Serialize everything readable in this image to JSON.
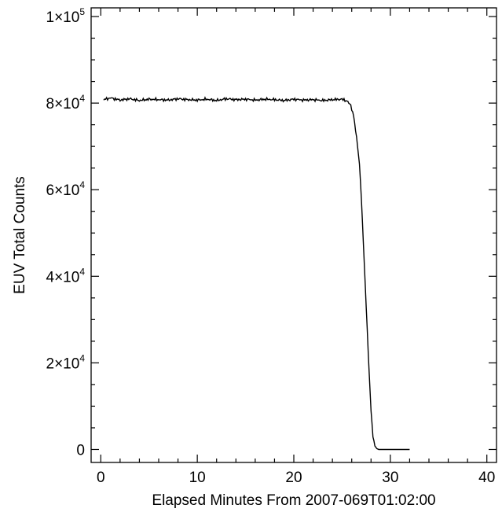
{
  "chart_data": {
    "type": "line",
    "title": "",
    "xlabel": "Elapsed Minutes From 2007-069T01:02:00",
    "ylabel": "EUV Total Counts",
    "xlim": [
      -1,
      41
    ],
    "ylim": [
      -3000,
      102000
    ],
    "grid": false,
    "x_ticks": [
      {
        "value": 0,
        "label": "0"
      },
      {
        "value": 10,
        "label": "10"
      },
      {
        "value": 20,
        "label": "20"
      },
      {
        "value": 30,
        "label": "30"
      },
      {
        "value": 40,
        "label": "40"
      }
    ],
    "y_ticks": [
      {
        "value": 0,
        "mantissa": "0",
        "exponent": ""
      },
      {
        "value": 20000,
        "mantissa": "2×10",
        "exponent": "4"
      },
      {
        "value": 40000,
        "mantissa": "4×10",
        "exponent": "4"
      },
      {
        "value": 60000,
        "mantissa": "6×10",
        "exponent": "4"
      },
      {
        "value": 80000,
        "mantissa": "8×10",
        "exponent": "4"
      },
      {
        "value": 100000,
        "mantissa": "1×10",
        "exponent": "5"
      }
    ],
    "series": [
      {
        "color": "#000000",
        "x": [
          0.3,
          1,
          2,
          3,
          4,
          5,
          6,
          7,
          8,
          9,
          10,
          11,
          12,
          13,
          14,
          15,
          16,
          17,
          18,
          19,
          20,
          21,
          22,
          23,
          24,
          25,
          25.5,
          25.9,
          26.2,
          26.5,
          26.8,
          27.0,
          27.2,
          27.4,
          27.6,
          27.8,
          28.0,
          28.2,
          28.4,
          28.6,
          28.8,
          29.0,
          29.5,
          30,
          31,
          32
        ],
        "y": [
          80800,
          81200,
          80700,
          81000,
          80600,
          80900,
          80800,
          80700,
          81000,
          80800,
          80700,
          80900,
          80600,
          81000,
          80800,
          80900,
          80700,
          80900,
          80800,
          80600,
          80900,
          80700,
          80800,
          80600,
          80800,
          80900,
          80500,
          79500,
          77000,
          72000,
          66000,
          58000,
          48000,
          38000,
          28000,
          18000,
          9000,
          3000,
          800,
          200,
          0,
          0,
          0,
          0,
          0,
          0
        ]
      }
    ]
  }
}
